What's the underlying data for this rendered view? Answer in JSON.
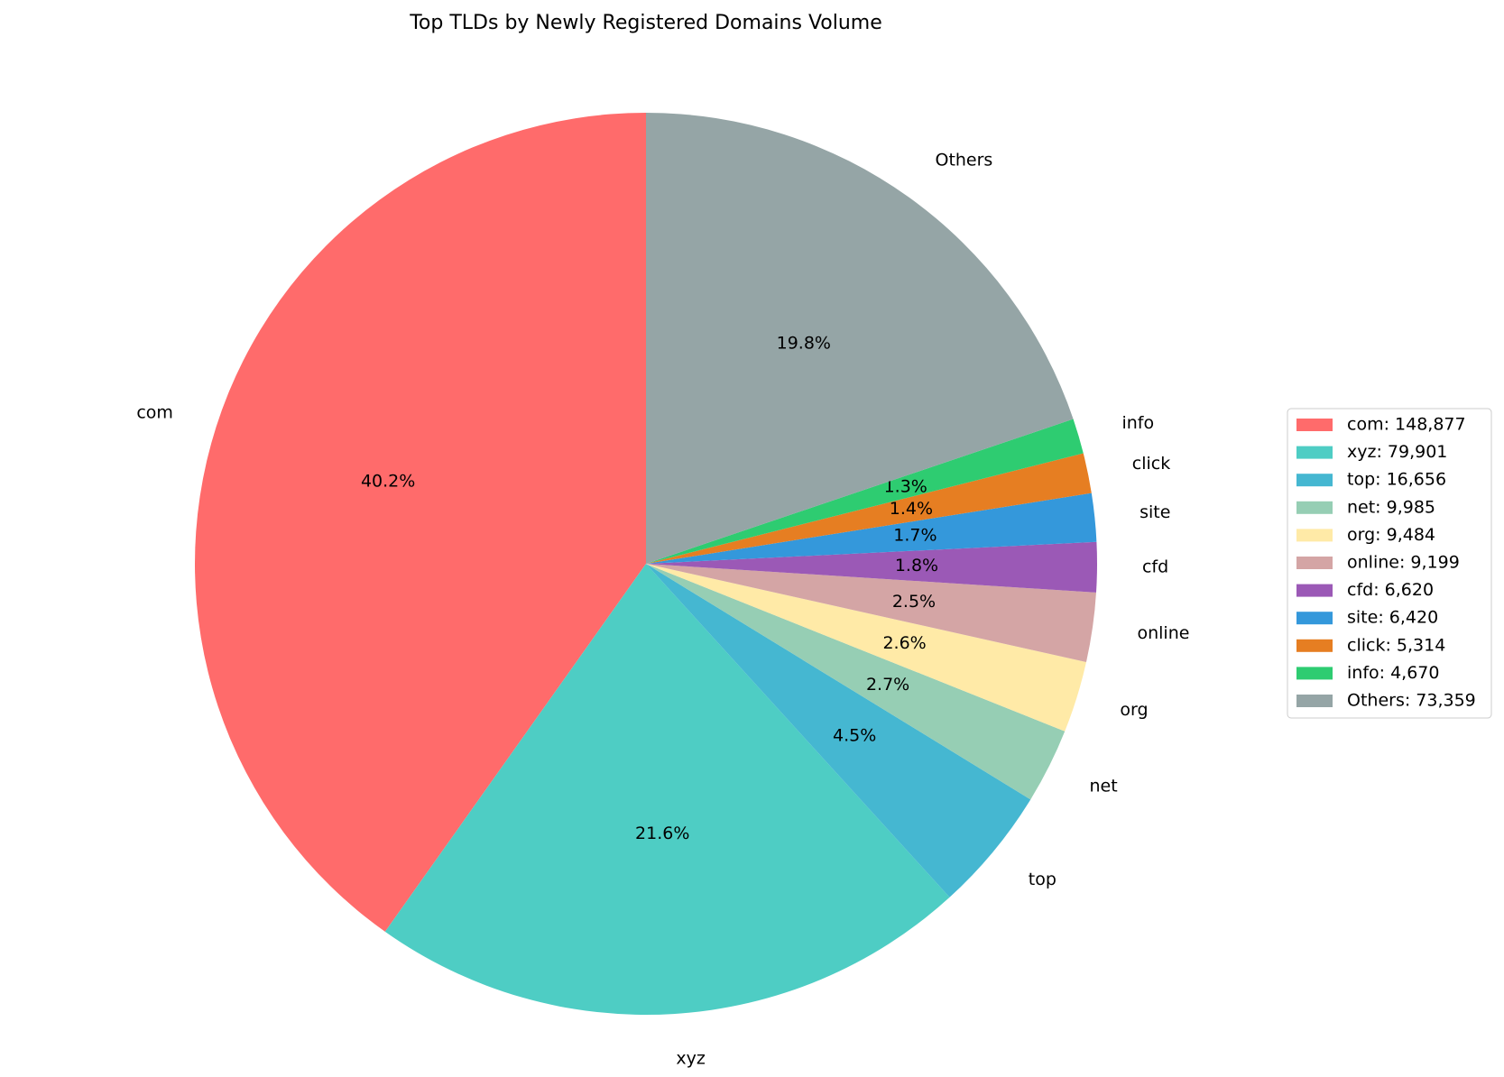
{
  "chart_data": {
    "type": "pie",
    "title": "Top TLDs by Newly Registered Domains Volume",
    "categories": [
      "com",
      "xyz",
      "top",
      "net",
      "org",
      "online",
      "cfd",
      "site",
      "click",
      "info",
      "Others"
    ],
    "values": [
      148877,
      79901,
      16656,
      9985,
      9484,
      9199,
      6620,
      6420,
      5314,
      4670,
      73359
    ],
    "value_labels": [
      "40.2%",
      "21.6%",
      "4.5%",
      "2.7%",
      "2.6%",
      "2.5%",
      "1.8%",
      "1.7%",
      "1.4%",
      "1.3%",
      "19.8%"
    ],
    "legend_labels": [
      "com: 148,877",
      "xyz: 79,901",
      "top: 16,656",
      "net: 9,985",
      "org: 9,484",
      "online: 9,199",
      "cfd: 6,620",
      "site: 6,420",
      "click: 5,314",
      "info: 4,670",
      "Others: 73,359"
    ],
    "colors": [
      "#ff6b6b",
      "#4ecdc4",
      "#45b7d1",
      "#96ceb4",
      "#ffeaa7",
      "#d4a5a5",
      "#9b59b6",
      "#3498db",
      "#e67e22",
      "#2ecc71",
      "#95a5a6"
    ],
    "start_angle": 90,
    "legend": "right"
  }
}
